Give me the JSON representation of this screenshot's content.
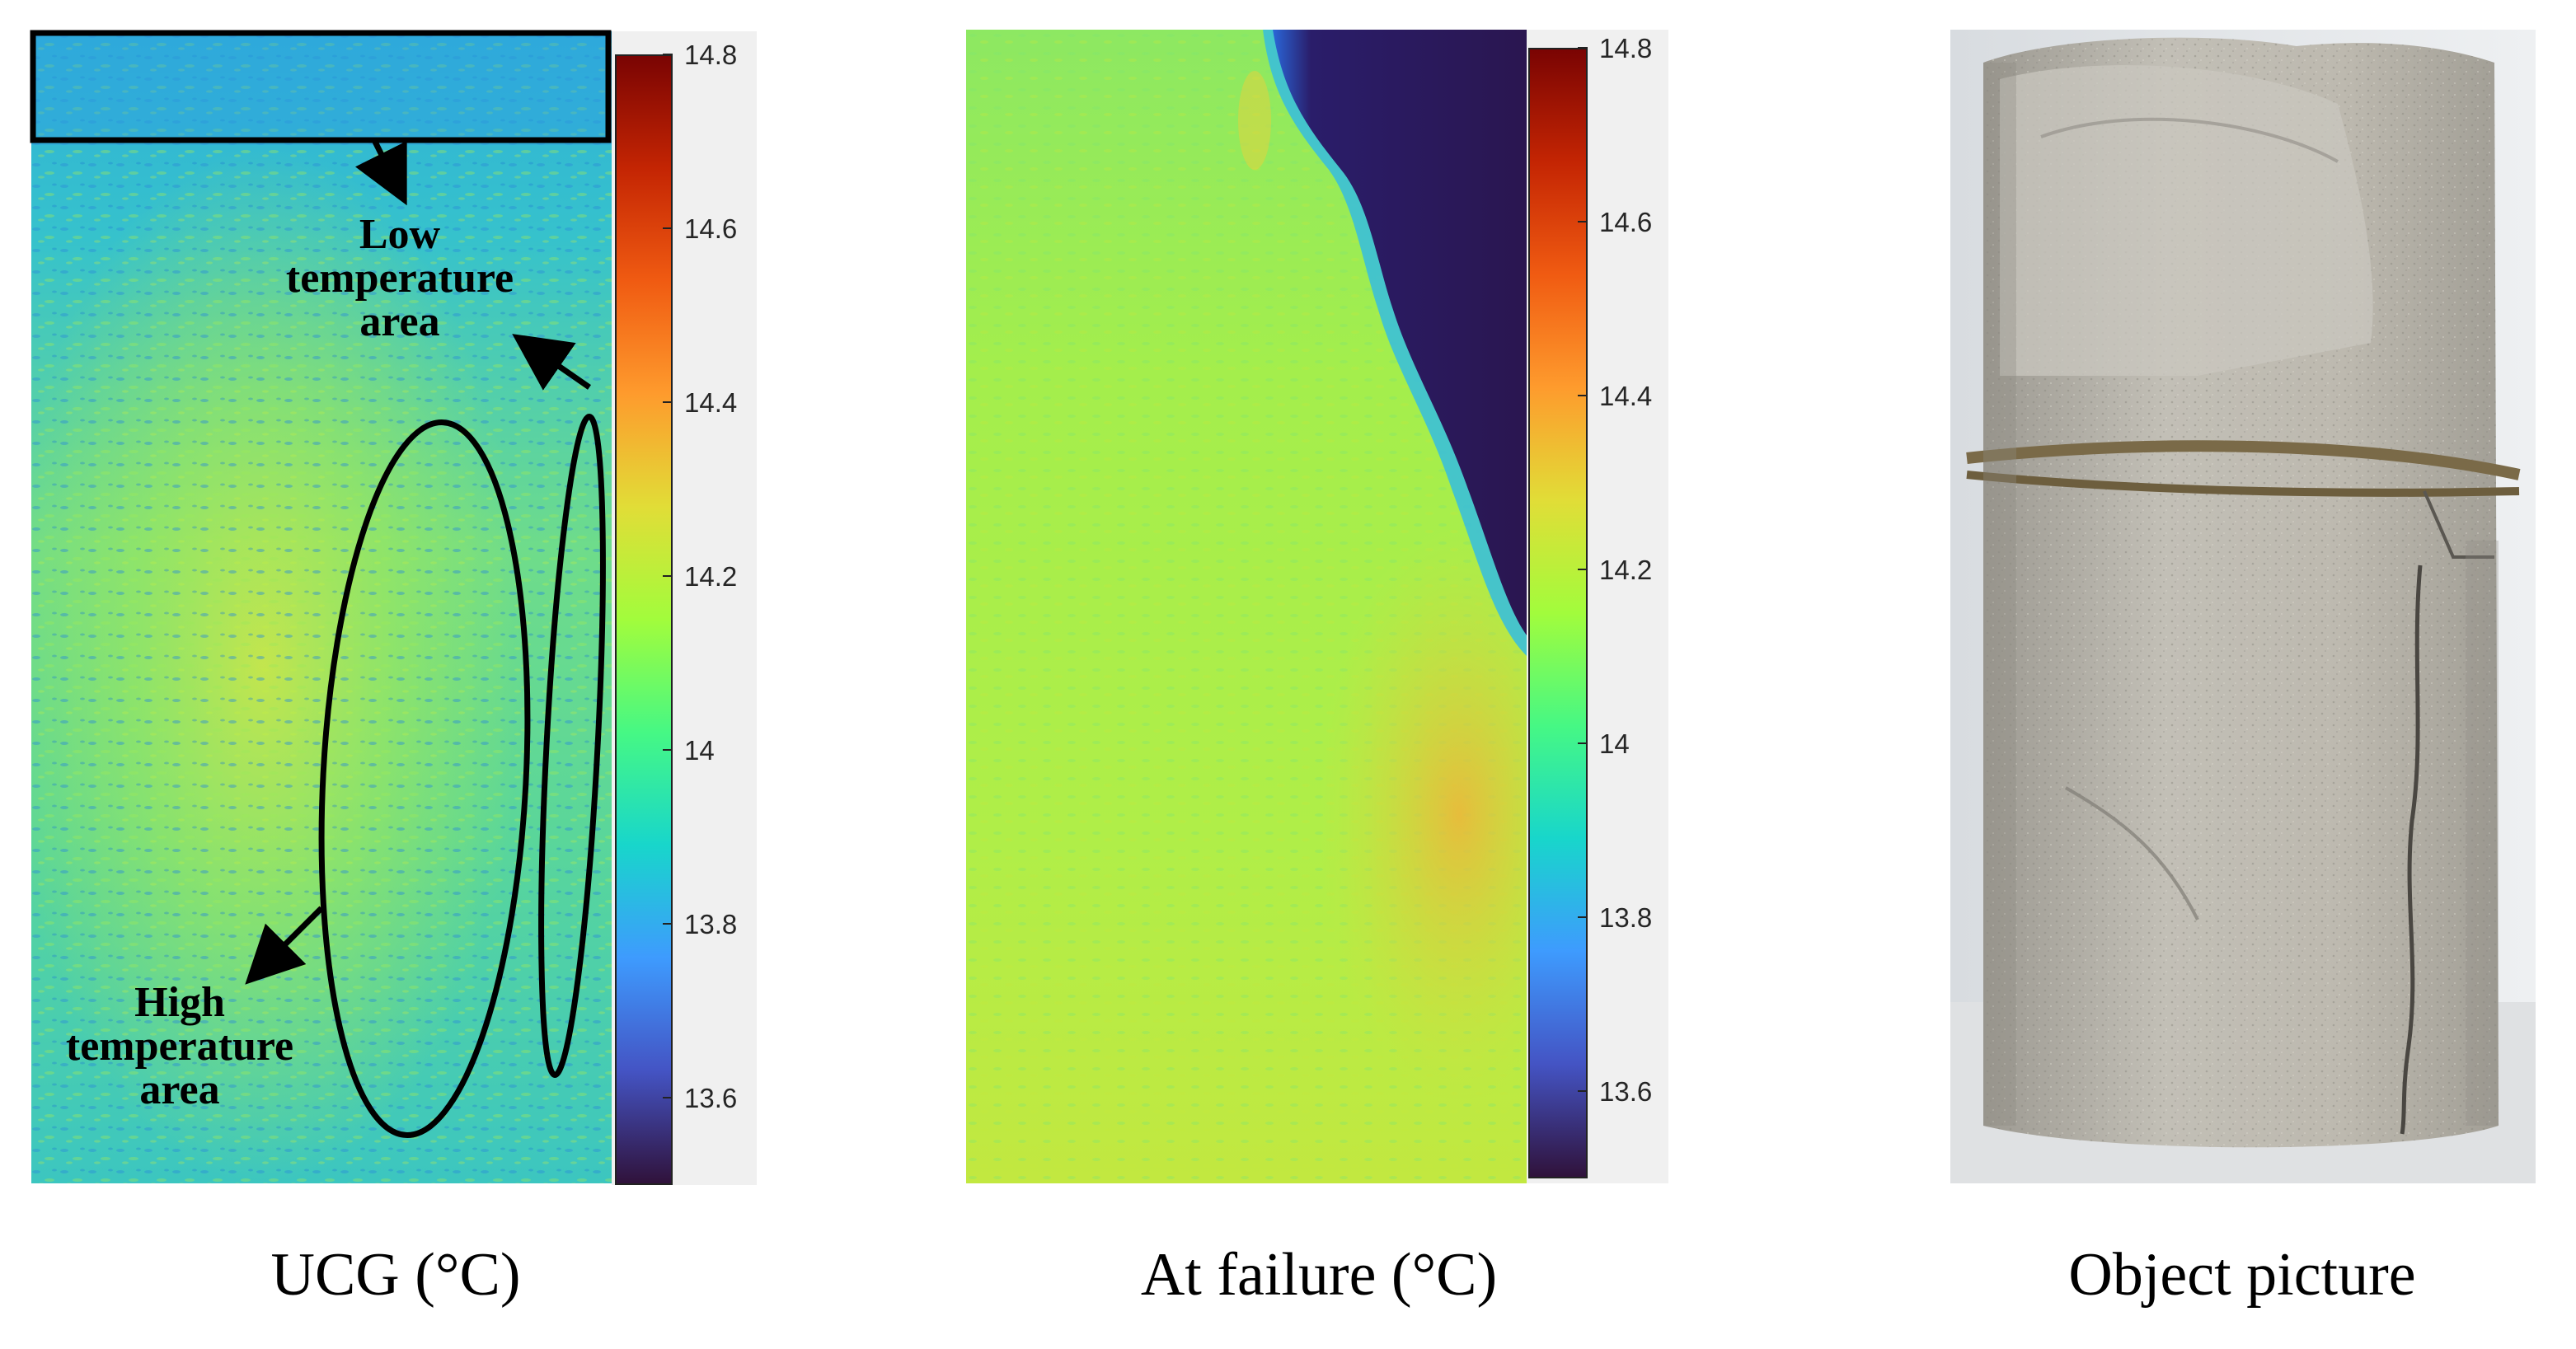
{
  "figure": {
    "panels": [
      {
        "id": "ucg",
        "caption": "UCG (°C)"
      },
      {
        "id": "failure",
        "caption": "At failure (°C)"
      },
      {
        "id": "object",
        "caption": "Object picture"
      }
    ],
    "annotations": {
      "low_temperature": "Low temperature area",
      "high_temperature": "High temperature area"
    },
    "colorbar": {
      "min": 13.5,
      "max": 14.8,
      "ticks": [
        "14.8",
        "14.6",
        "14.4",
        "14.2",
        "14",
        "13.8",
        "13.6"
      ],
      "colormap": [
        "#30123b",
        "#4454c4",
        "#3e9bfe",
        "#18d6cb",
        "#46f884",
        "#a2fc3c",
        "#e1dd37",
        "#fe9b2d",
        "#f05b12",
        "#c42503",
        "#7a0403"
      ]
    },
    "colors": {
      "ucg_base": "#3ec8c8",
      "ucg_hot": "#a8e84a",
      "failure_base": "#a6ef4a",
      "failure_cold": "#2a1a5a",
      "rock": "#b9b6ac"
    }
  }
}
